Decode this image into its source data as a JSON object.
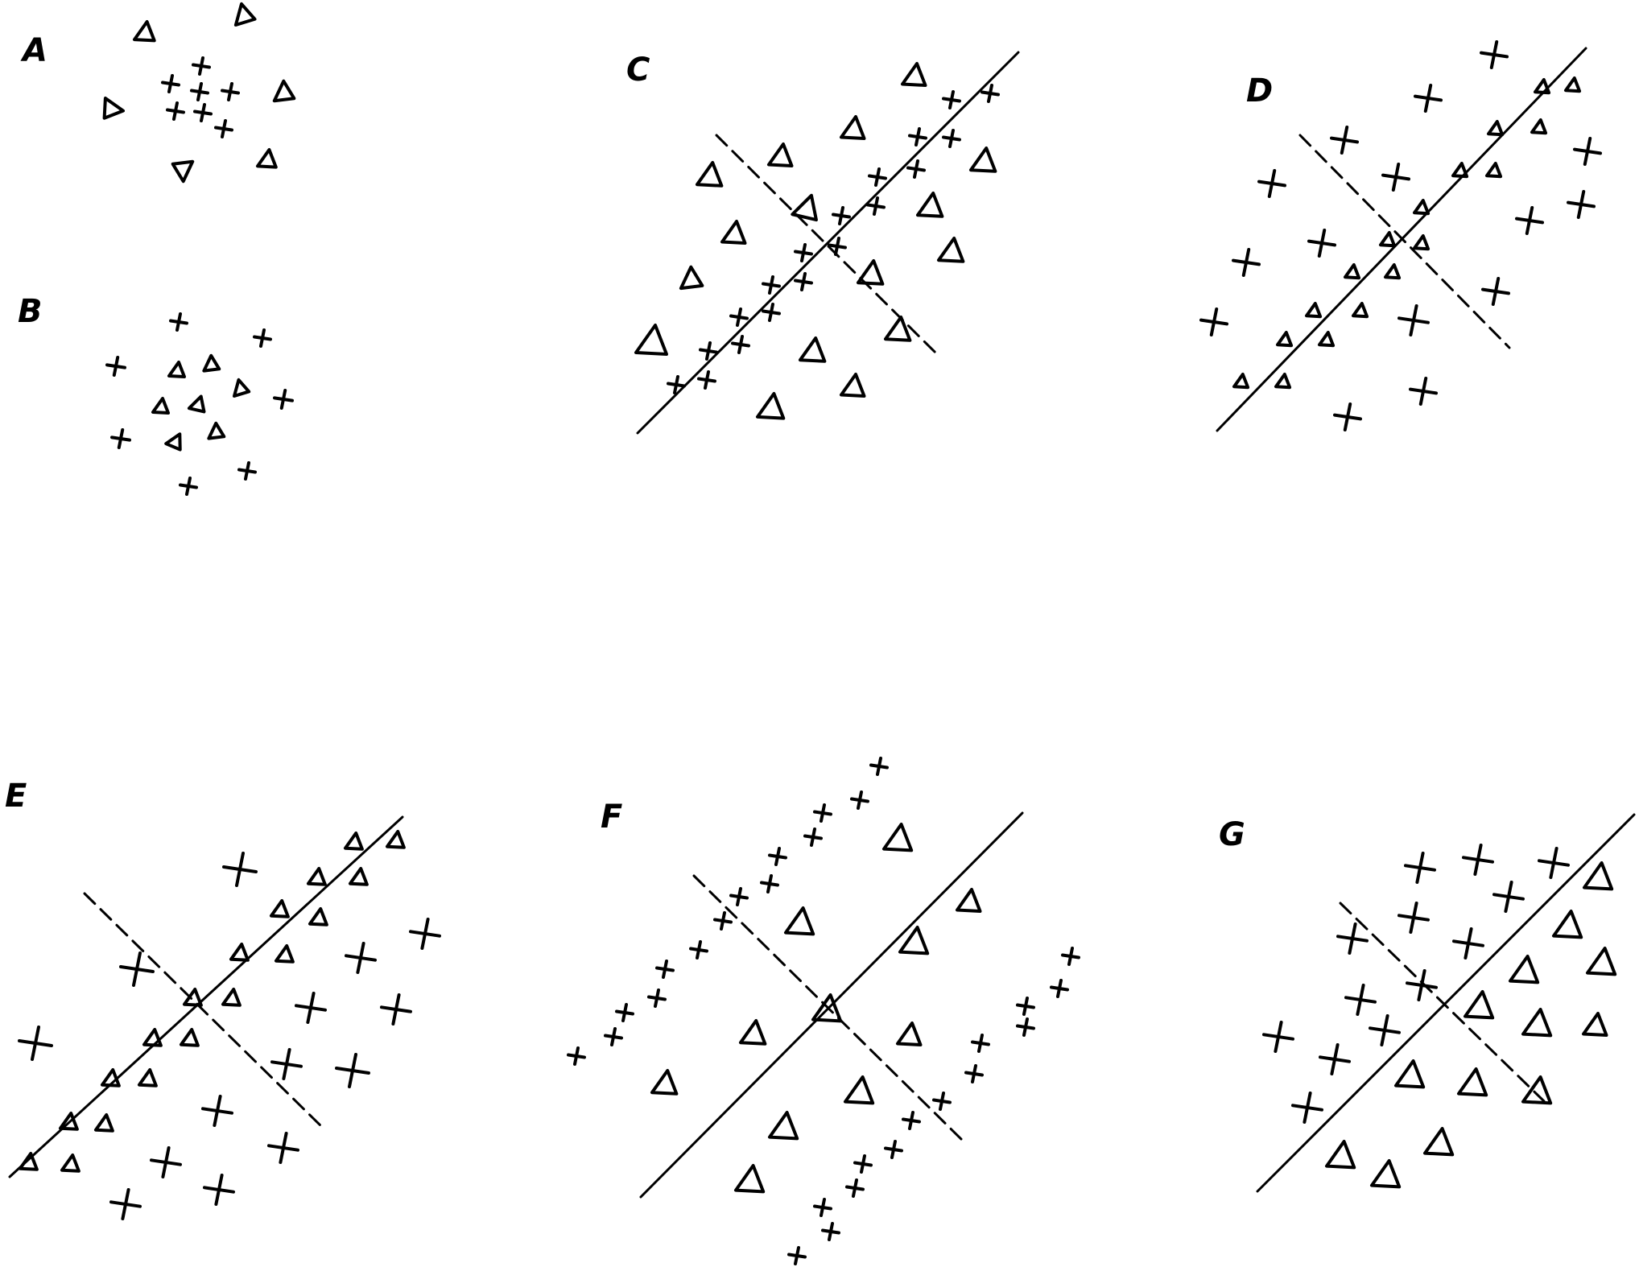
{
  "panels": [
    {
      "id": "A",
      "label": "A"
    },
    {
      "id": "B",
      "label": "B"
    },
    {
      "id": "C",
      "label": "C"
    },
    {
      "id": "D",
      "label": "D"
    },
    {
      "id": "E",
      "label": "E"
    },
    {
      "id": "F",
      "label": "F"
    },
    {
      "id": "G",
      "label": "G"
    }
  ],
  "marker_types": [
    "cross",
    "triangle"
  ],
  "line_style": {
    "color": "#000000"
  }
}
